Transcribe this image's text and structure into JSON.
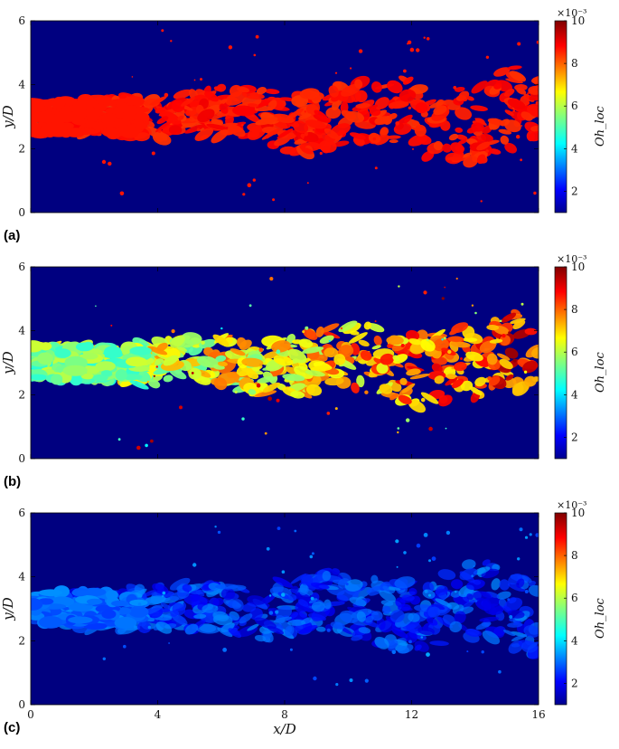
{
  "chart_data": [
    {
      "type": "heatmap",
      "panel_label": "(a)",
      "ylabel": "y/D",
      "xlabel": "",
      "xlim": [
        0,
        16
      ],
      "ylim": [
        0,
        6
      ],
      "y_ticks": [
        "0",
        "2",
        "4",
        "6"
      ],
      "x_ticks": [],
      "background_value": 1,
      "jet_color_value": 8.7,
      "colorbar": {
        "label": "Oh_loc",
        "scale_label": "×10⁻³",
        "range": [
          1,
          10
        ],
        "ticks": [
          "2",
          "4",
          "6",
          "8",
          "10"
        ]
      }
    },
    {
      "type": "heatmap",
      "panel_label": "(b)",
      "ylabel": "y/D",
      "xlabel": "",
      "xlim": [
        0,
        16
      ],
      "ylim": [
        0,
        6
      ],
      "y_ticks": [
        "0",
        "2",
        "4",
        "6"
      ],
      "x_ticks": [],
      "background_value": 1,
      "near_field_value": 5.5,
      "far_field_value": 8.5,
      "colorbar": {
        "label": "Oh_loc",
        "scale_label": "×10⁻³",
        "range": [
          1,
          10
        ],
        "ticks": [
          "2",
          "4",
          "6",
          "8",
          "10"
        ]
      }
    },
    {
      "type": "heatmap",
      "panel_label": "(c)",
      "ylabel": "y/D",
      "xlabel": "x/D",
      "xlim": [
        0,
        16
      ],
      "ylim": [
        0,
        6
      ],
      "y_ticks": [
        "0",
        "2",
        "4",
        "6"
      ],
      "x_ticks": [
        "0",
        "4",
        "8",
        "12",
        "16"
      ],
      "background_value": 1,
      "jet_color_value": 2.6,
      "colorbar": {
        "label": "Oh_loc",
        "scale_label": "×10⁻³",
        "range": [
          1,
          10
        ],
        "ticks": [
          "2",
          "4",
          "6",
          "8",
          "10"
        ]
      }
    }
  ]
}
